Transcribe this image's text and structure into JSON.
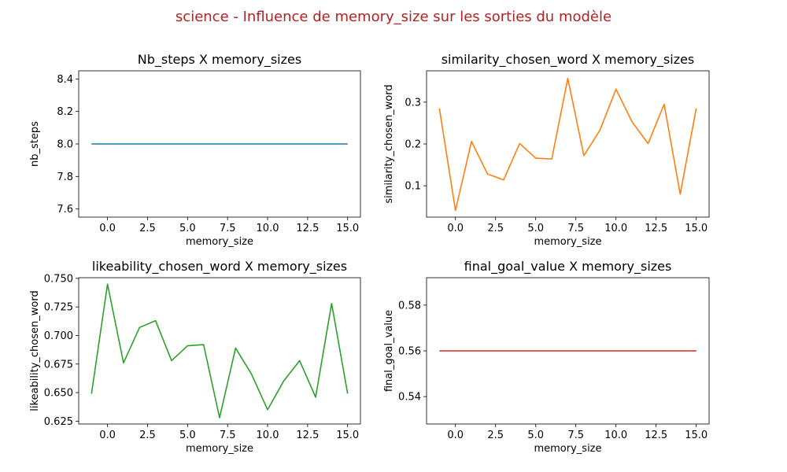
{
  "figure": {
    "suptitle": "science - Influence de memory_size sur les sorties du modèle",
    "suptitle_color": "#b22222"
  },
  "chart_data": [
    {
      "type": "line",
      "title": "Nb_steps X memory_sizes",
      "xlabel": "memory_size",
      "ylabel": "nb_steps",
      "xlim": [
        -1.8,
        15.8
      ],
      "ylim": [
        7.55,
        8.45
      ],
      "xticks": [
        "0.0",
        "2.5",
        "5.0",
        "7.5",
        "10.0",
        "12.5",
        "15.0"
      ],
      "yticks": [
        "7.6",
        "7.8",
        "8.0",
        "8.2",
        "8.4"
      ],
      "color": "#1f77b4",
      "x": [
        -1,
        0,
        1,
        2,
        3,
        4,
        5,
        6,
        7,
        8,
        9,
        10,
        11,
        12,
        13,
        14,
        15
      ],
      "values": [
        8,
        8,
        8,
        8,
        8,
        8,
        8,
        8,
        8,
        8,
        8,
        8,
        8,
        8,
        8,
        8,
        8
      ],
      "grid": false
    },
    {
      "type": "line",
      "title": "similarity_chosen_word X memory_sizes",
      "xlabel": "memory_size",
      "ylabel": "similarity_chosen_word",
      "xlim": [
        -1.8,
        15.8
      ],
      "ylim": [
        0.025,
        0.375
      ],
      "xticks": [
        "0.0",
        "2.5",
        "5.0",
        "7.5",
        "10.0",
        "12.5",
        "15.0"
      ],
      "yticks": [
        "0.1",
        "0.2",
        "0.3"
      ],
      "color": "#ff7f0e",
      "x": [
        -1,
        0,
        1,
        2,
        3,
        4,
        5,
        6,
        7,
        8,
        9,
        10,
        11,
        12,
        13,
        14,
        15
      ],
      "values": [
        0.285,
        0.041,
        0.206,
        0.128,
        0.114,
        0.201,
        0.166,
        0.164,
        0.357,
        0.172,
        0.233,
        0.331,
        0.253,
        0.201,
        0.295,
        0.08,
        0.285
      ],
      "grid": false
    },
    {
      "type": "line",
      "title": "likeability_chosen_word X memory_sizes",
      "xlabel": "memory_size",
      "ylabel": "likeability_chosen_word",
      "xlim": [
        -1.8,
        15.8
      ],
      "ylim": [
        0.6225,
        0.7506
      ],
      "xticks": [
        "0.0",
        "2.5",
        "5.0",
        "7.5",
        "10.0",
        "12.5",
        "15.0"
      ],
      "yticks": [
        "0.625",
        "0.650",
        "0.675",
        "0.700",
        "0.725",
        "0.750"
      ],
      "color": "#2ca02c",
      "x": [
        -1,
        0,
        1,
        2,
        3,
        4,
        5,
        6,
        7,
        8,
        9,
        10,
        11,
        12,
        13,
        14,
        15
      ],
      "values": [
        0.649,
        0.745,
        0.676,
        0.707,
        0.713,
        0.678,
        0.691,
        0.692,
        0.628,
        0.689,
        0.666,
        0.635,
        0.66,
        0.678,
        0.646,
        0.728,
        0.649
      ],
      "grid": false
    },
    {
      "type": "line",
      "title": "final_goal_value X memory_sizes",
      "xlabel": "memory_size",
      "ylabel": "final_goal_value",
      "xlim": [
        -1.8,
        15.8
      ],
      "ylim": [
        0.528,
        0.592
      ],
      "xticks": [
        "0.0",
        "2.5",
        "5.0",
        "7.5",
        "10.0",
        "12.5",
        "15.0"
      ],
      "yticks": [
        "0.54",
        "0.56",
        "0.58"
      ],
      "color": "#d62728",
      "x": [
        -1,
        0,
        1,
        2,
        3,
        4,
        5,
        6,
        7,
        8,
        9,
        10,
        11,
        12,
        13,
        14,
        15
      ],
      "values": [
        0.56,
        0.56,
        0.56,
        0.56,
        0.56,
        0.56,
        0.56,
        0.56,
        0.56,
        0.56,
        0.56,
        0.56,
        0.56,
        0.56,
        0.56,
        0.56,
        0.56
      ],
      "grid": false
    }
  ]
}
